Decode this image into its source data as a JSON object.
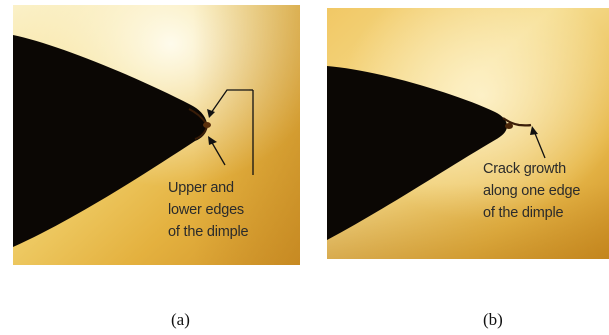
{
  "panels": [
    {
      "annotation_lines": [
        "Upper and",
        "lower edges",
        "of the dimple"
      ],
      "caption": "(a)"
    },
    {
      "annotation_lines": [
        "Crack growth",
        "along one edge",
        "of the dimple"
      ],
      "caption": "(b)"
    }
  ],
  "colors": {
    "background_light": "#f7e7a6",
    "background_mid": "#e8b845",
    "background_dark": "#c98a1e",
    "specimen": "#0b0704",
    "annotation_text": "#2b2b2b",
    "arrow": "#111111"
  }
}
